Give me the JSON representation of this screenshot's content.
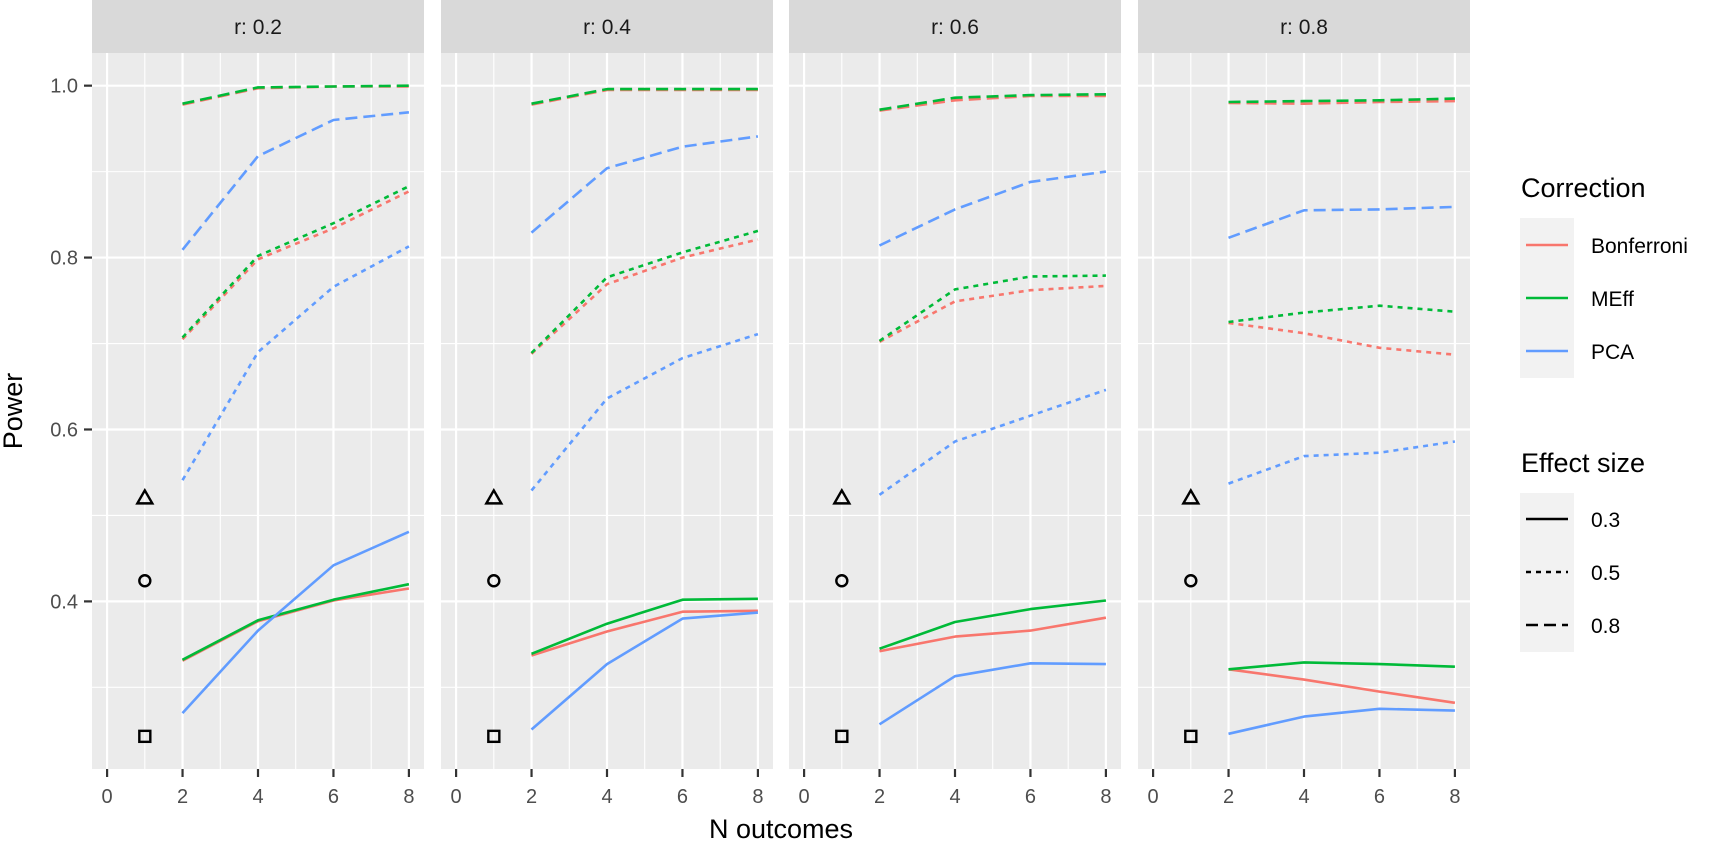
{
  "chart_data": {
    "type": "line",
    "facet_by": "r",
    "xlabel": "N outcomes",
    "ylabel": "Power",
    "xlim": [
      -0.4,
      8.4
    ],
    "ylim": [
      0.205,
      1.038
    ],
    "x_ticks": [
      0,
      2,
      4,
      6,
      8
    ],
    "x_tick_labels": [
      "0",
      "2",
      "4",
      "6",
      "8"
    ],
    "y_ticks": [
      0.4,
      0.6,
      0.8,
      1.0
    ],
    "y_tick_labels": [
      "0.4",
      "0.6",
      "0.8",
      "1.0"
    ],
    "y_minor_ticks": [
      0.3,
      0.5,
      0.7,
      0.9
    ],
    "x_minor_ticks": [
      1,
      3,
      5,
      7
    ],
    "grid": true,
    "legend_position": "right",
    "colors": {
      "Bonferroni": "#F8766D",
      "MEff": "#00BA38",
      "PCA": "#619CFF"
    },
    "legends": [
      {
        "title": "Correction",
        "entries": [
          "Bonferroni",
          "MEff",
          "PCA"
        ]
      },
      {
        "title": "Effect size",
        "entries": [
          "0.3",
          "0.5",
          "0.8"
        ],
        "linetypes": [
          "solid",
          "dotted",
          "dashed"
        ]
      }
    ],
    "x": [
      2,
      4,
      6,
      8
    ],
    "reference_points": [
      {
        "x": 1,
        "y": 0.521,
        "shape": "triangle",
        "effect_size": "0.8"
      },
      {
        "x": 1,
        "y": 0.424,
        "shape": "circle",
        "effect_size": "0.5"
      },
      {
        "x": 1,
        "y": 0.243,
        "shape": "square",
        "effect_size": "0.3"
      }
    ],
    "panels": [
      {
        "strip": "r: 0.2",
        "series": [
          {
            "correction": "Bonferroni",
            "effect_size": "0.3",
            "values": [
              0.331,
              0.377,
              0.401,
              0.415
            ]
          },
          {
            "correction": "MEff",
            "effect_size": "0.3",
            "values": [
              0.332,
              0.378,
              0.402,
              0.42
            ]
          },
          {
            "correction": "PCA",
            "effect_size": "0.3",
            "values": [
              0.27,
              0.366,
              0.442,
              0.481
            ]
          },
          {
            "correction": "Bonferroni",
            "effect_size": "0.5",
            "values": [
              0.705,
              0.798,
              0.834,
              0.877
            ]
          },
          {
            "correction": "MEff",
            "effect_size": "0.5",
            "values": [
              0.707,
              0.802,
              0.84,
              0.883
            ]
          },
          {
            "correction": "PCA",
            "effect_size": "0.5",
            "values": [
              0.541,
              0.69,
              0.766,
              0.813
            ]
          },
          {
            "correction": "Bonferroni",
            "effect_size": "0.8",
            "values": [
              0.978,
              0.997,
              0.999,
              0.999
            ]
          },
          {
            "correction": "MEff",
            "effect_size": "0.8",
            "values": [
              0.979,
              0.998,
              0.999,
              1.0
            ]
          },
          {
            "correction": "PCA",
            "effect_size": "0.8",
            "values": [
              0.809,
              0.918,
              0.96,
              0.969
            ]
          }
        ]
      },
      {
        "strip": "r: 0.4",
        "series": [
          {
            "correction": "Bonferroni",
            "effect_size": "0.3",
            "values": [
              0.337,
              0.365,
              0.388,
              0.389
            ]
          },
          {
            "correction": "MEff",
            "effect_size": "0.3",
            "values": [
              0.339,
              0.374,
              0.402,
              0.403
            ]
          },
          {
            "correction": "PCA",
            "effect_size": "0.3",
            "values": [
              0.251,
              0.327,
              0.38,
              0.387
            ]
          },
          {
            "correction": "Bonferroni",
            "effect_size": "0.5",
            "values": [
              0.688,
              0.769,
              0.8,
              0.821
            ]
          },
          {
            "correction": "MEff",
            "effect_size": "0.5",
            "values": [
              0.689,
              0.777,
              0.806,
              0.831
            ]
          },
          {
            "correction": "PCA",
            "effect_size": "0.5",
            "values": [
              0.529,
              0.636,
              0.683,
              0.711
            ]
          },
          {
            "correction": "Bonferroni",
            "effect_size": "0.8",
            "values": [
              0.978,
              0.995,
              0.995,
              0.995
            ]
          },
          {
            "correction": "MEff",
            "effect_size": "0.8",
            "values": [
              0.979,
              0.996,
              0.996,
              0.996
            ]
          },
          {
            "correction": "PCA",
            "effect_size": "0.8",
            "values": [
              0.829,
              0.904,
              0.929,
              0.941
            ]
          }
        ]
      },
      {
        "strip": "r: 0.6",
        "series": [
          {
            "correction": "Bonferroni",
            "effect_size": "0.3",
            "values": [
              0.342,
              0.359,
              0.366,
              0.381
            ]
          },
          {
            "correction": "MEff",
            "effect_size": "0.3",
            "values": [
              0.345,
              0.376,
              0.391,
              0.401
            ]
          },
          {
            "correction": "PCA",
            "effect_size": "0.3",
            "values": [
              0.257,
              0.313,
              0.328,
              0.327
            ]
          },
          {
            "correction": "Bonferroni",
            "effect_size": "0.5",
            "values": [
              0.702,
              0.749,
              0.762,
              0.767
            ]
          },
          {
            "correction": "MEff",
            "effect_size": "0.5",
            "values": [
              0.703,
              0.763,
              0.778,
              0.779
            ]
          },
          {
            "correction": "PCA",
            "effect_size": "0.5",
            "values": [
              0.524,
              0.586,
              0.616,
              0.646
            ]
          },
          {
            "correction": "Bonferroni",
            "effect_size": "0.8",
            "values": [
              0.971,
              0.983,
              0.988,
              0.988
            ]
          },
          {
            "correction": "MEff",
            "effect_size": "0.8",
            "values": [
              0.972,
              0.986,
              0.989,
              0.99
            ]
          },
          {
            "correction": "PCA",
            "effect_size": "0.8",
            "values": [
              0.814,
              0.856,
              0.888,
              0.9
            ]
          }
        ]
      },
      {
        "strip": "r: 0.8",
        "series": [
          {
            "correction": "Bonferroni",
            "effect_size": "0.3",
            "values": [
              0.321,
              0.309,
              0.295,
              0.282
            ]
          },
          {
            "correction": "MEff",
            "effect_size": "0.3",
            "values": [
              0.321,
              0.329,
              0.327,
              0.324
            ]
          },
          {
            "correction": "PCA",
            "effect_size": "0.3",
            "values": [
              0.246,
              0.266,
              0.275,
              0.273
            ]
          },
          {
            "correction": "Bonferroni",
            "effect_size": "0.5",
            "values": [
              0.724,
              0.712,
              0.695,
              0.687
            ]
          },
          {
            "correction": "MEff",
            "effect_size": "0.5",
            "values": [
              0.725,
              0.736,
              0.744,
              0.737
            ]
          },
          {
            "correction": "PCA",
            "effect_size": "0.5",
            "values": [
              0.537,
              0.569,
              0.573,
              0.586
            ]
          },
          {
            "correction": "Bonferroni",
            "effect_size": "0.8",
            "values": [
              0.98,
              0.979,
              0.981,
              0.982
            ]
          },
          {
            "correction": "MEff",
            "effect_size": "0.8",
            "values": [
              0.981,
              0.982,
              0.983,
              0.985
            ]
          },
          {
            "correction": "PCA",
            "effect_size": "0.8",
            "values": [
              0.823,
              0.855,
              0.856,
              0.859
            ]
          }
        ]
      }
    ]
  }
}
